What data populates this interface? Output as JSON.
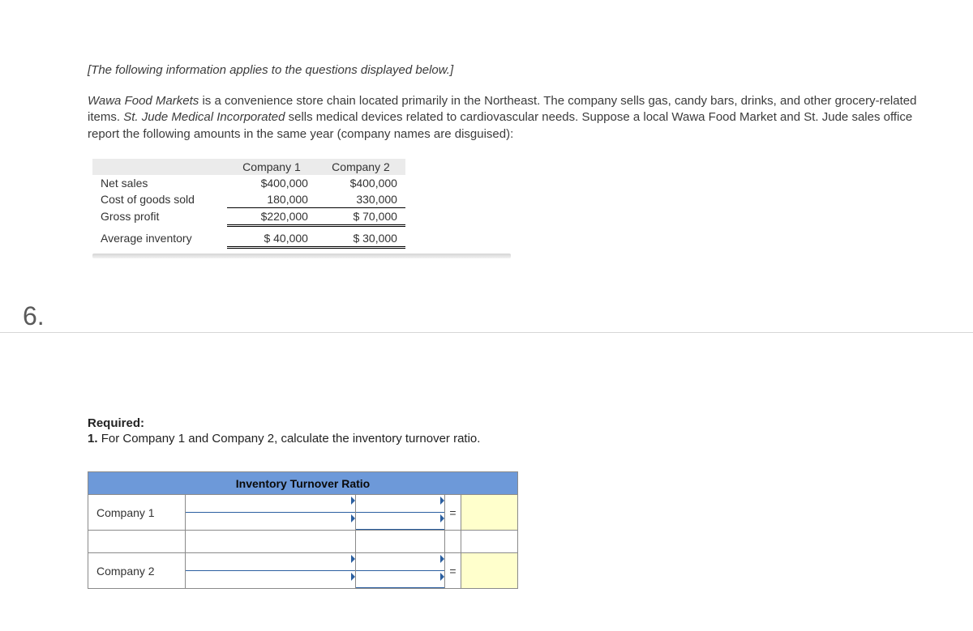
{
  "intro_italic": "[The following information applies to the questions displayed below.]",
  "paragraph": {
    "p1a": "Wawa Food Markets",
    "p1b": " is a convenience store chain located primarily in the Northeast. The company sells gas, candy bars, drinks, and other grocery-related items. ",
    "p1c": "St. Jude Medical Incorporated",
    "p1d": " sells medical devices related to cardiovascular needs. Suppose a local Wawa Food Market and St. Jude sales office report the following amounts in the same year (company names are disguised):"
  },
  "fin_table": {
    "headers": [
      "",
      "Company 1",
      "Company 2"
    ],
    "rows": [
      {
        "label": "Net sales",
        "c1": "$400,000",
        "c2": "$400,000",
        "cls": ""
      },
      {
        "label": "Cost of goods sold",
        "c1": "180,000",
        "c2": "330,000",
        "cls": ""
      },
      {
        "label": "Gross profit",
        "c1": "$220,000",
        "c2": "$  70,000",
        "cls": "subtotal dbl"
      },
      {
        "label": "Average inventory",
        "c1": "$  40,000",
        "c2": "$  30,000",
        "cls": "space dbl"
      }
    ]
  },
  "question_number": "6.",
  "required": {
    "header": "Required:",
    "line": "1. For Company 1 and Company 2, calculate the inventory turnover ratio."
  },
  "answer_table": {
    "header": "Inventory Turnover Ratio",
    "rows": [
      {
        "label": "Company 1",
        "eq": "=",
        "result_bg": "#ffffcc"
      },
      {
        "label": "",
        "eq": "",
        "result_bg": "#ffffff"
      },
      {
        "label": "Company 2",
        "eq": "=",
        "result_bg": "#ffffcc"
      }
    ],
    "colors": {
      "header_bg": "#6d99d9",
      "border": "#8a8a8a",
      "slot_border": "#2b5fa0",
      "result_bg": "#ffffcc"
    }
  }
}
